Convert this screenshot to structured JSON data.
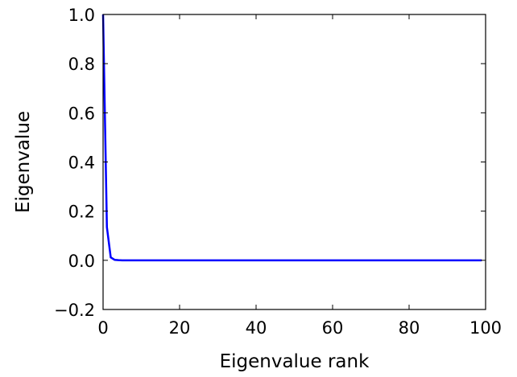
{
  "chart_data": {
    "type": "line",
    "title": "",
    "xlabel": "Eigenvalue rank",
    "ylabel": "Eigenvalue",
    "xlim": [
      0,
      100
    ],
    "ylim": [
      -0.2,
      1.0
    ],
    "xticks": [
      0,
      20,
      40,
      60,
      80,
      100
    ],
    "xtick_labels": [
      "0",
      "20",
      "40",
      "60",
      "80",
      "100"
    ],
    "yticks": [
      -0.2,
      0.0,
      0.2,
      0.4,
      0.6,
      0.8,
      1.0
    ],
    "ytick_labels": [
      "−0.2",
      "0.0",
      "0.2",
      "0.4",
      "0.6",
      "0.8",
      "1.0"
    ],
    "grid": false,
    "legend": "none",
    "series": [
      {
        "color": "#0000ff",
        "x": [
          0,
          1,
          2,
          3,
          4,
          5,
          10,
          20,
          30,
          40,
          50,
          60,
          70,
          80,
          90,
          99
        ],
        "y": [
          1.0,
          0.135,
          0.012,
          0.002,
          0.0005,
          0.0,
          0.0,
          0.0,
          0.0,
          0.0,
          0.0,
          0.0,
          0.0,
          0.0,
          0.0,
          0.0
        ]
      }
    ]
  }
}
